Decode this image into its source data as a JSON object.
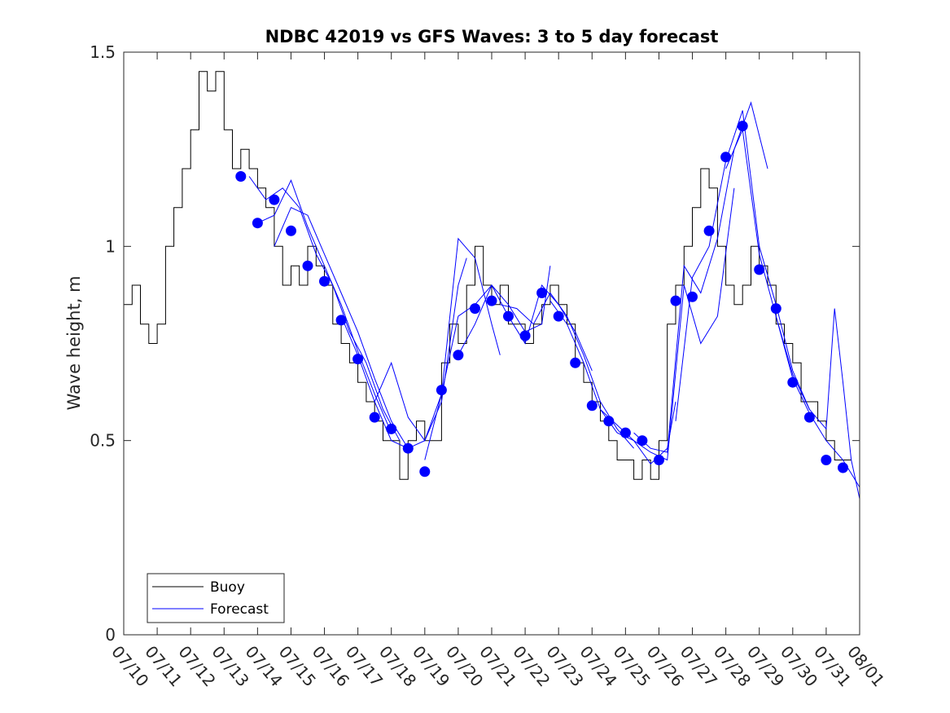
{
  "chart_data": {
    "type": "line",
    "title": "NDBC 42019 vs GFS Waves: 3 to 5 day forecast",
    "xlabel": "",
    "ylabel": "Wave height, m",
    "x_tick_labels": [
      "07/10",
      "07/11",
      "07/12",
      "07/13",
      "07/14",
      "07/15",
      "07/16",
      "07/17",
      "07/18",
      "07/19",
      "07/20",
      "07/21",
      "07/22",
      "07/23",
      "07/24",
      "07/25",
      "07/26",
      "07/27",
      "07/28",
      "07/29",
      "07/30",
      "07/31",
      "08/01"
    ],
    "xlim": [
      "07/10",
      "08/01"
    ],
    "ylim": [
      0,
      1.5
    ],
    "y_ticks": [
      0,
      0.5,
      1,
      1.5
    ],
    "y_tick_labels": [
      "0",
      "0.5",
      "1",
      "1.5"
    ],
    "grid": false,
    "legend": {
      "position": "bottom-left",
      "entries": [
        "Buoy",
        "Forecast"
      ]
    },
    "colors": {
      "buoy": "#000000",
      "forecast": "#0000ff",
      "markers": "#0000ff",
      "axes": "#262626"
    },
    "series": [
      {
        "name": "Buoy",
        "style": "stairs",
        "x": [
          "07/10 00:00",
          "07/10 06:00",
          "07/10 12:00",
          "07/10 18:00",
          "07/11 00:00",
          "07/11 06:00",
          "07/11 12:00",
          "07/11 18:00",
          "07/12 00:00",
          "07/12 06:00",
          "07/12 12:00",
          "07/12 18:00",
          "07/13 00:00",
          "07/13 06:00",
          "07/13 12:00",
          "07/13 18:00",
          "07/14 00:00",
          "07/14 06:00",
          "07/14 12:00",
          "07/14 18:00",
          "07/15 00:00",
          "07/15 06:00",
          "07/15 12:00",
          "07/15 18:00",
          "07/16 00:00",
          "07/16 06:00",
          "07/16 12:00",
          "07/16 18:00",
          "07/17 00:00",
          "07/17 06:00",
          "07/17 12:00",
          "07/17 18:00",
          "07/18 00:00",
          "07/18 06:00",
          "07/18 12:00",
          "07/18 18:00",
          "07/19 00:00",
          "07/19 06:00",
          "07/19 12:00",
          "07/19 18:00",
          "07/20 00:00",
          "07/20 06:00",
          "07/20 12:00",
          "07/20 18:00",
          "07/21 00:00",
          "07/21 06:00",
          "07/21 12:00",
          "07/21 18:00",
          "07/22 00:00",
          "07/22 06:00",
          "07/22 12:00",
          "07/22 18:00",
          "07/23 00:00",
          "07/23 06:00",
          "07/23 12:00",
          "07/23 18:00",
          "07/24 00:00",
          "07/24 06:00",
          "07/24 12:00",
          "07/24 18:00",
          "07/25 00:00",
          "07/25 06:00",
          "07/25 12:00",
          "07/25 18:00",
          "07/26 00:00",
          "07/26 06:00",
          "07/26 12:00",
          "07/26 18:00",
          "07/27 00:00",
          "07/27 06:00",
          "07/27 12:00",
          "07/27 18:00",
          "07/28 00:00",
          "07/28 06:00",
          "07/28 12:00",
          "07/28 18:00",
          "07/29 00:00",
          "07/29 06:00",
          "07/29 12:00",
          "07/29 18:00",
          "07/30 00:00",
          "07/30 06:00",
          "07/30 12:00",
          "07/30 18:00",
          "07/31 00:00",
          "07/31 06:00",
          "07/31 12:00"
        ],
        "y": [
          0.85,
          0.9,
          0.8,
          0.75,
          0.8,
          1.0,
          1.1,
          1.2,
          1.3,
          1.45,
          1.4,
          1.45,
          1.3,
          1.2,
          1.25,
          1.2,
          1.15,
          1.1,
          1.0,
          0.9,
          0.95,
          0.9,
          1.0,
          0.95,
          0.9,
          0.8,
          0.75,
          0.7,
          0.65,
          0.6,
          0.55,
          0.5,
          0.5,
          0.4,
          0.5,
          0.55,
          0.5,
          0.5,
          0.7,
          0.8,
          0.75,
          0.9,
          1.0,
          0.9,
          0.85,
          0.9,
          0.8,
          0.8,
          0.75,
          0.8,
          0.85,
          0.9,
          0.85,
          0.8,
          0.7,
          0.65,
          0.6,
          0.55,
          0.5,
          0.45,
          0.45,
          0.4,
          0.45,
          0.4,
          0.5,
          0.8,
          0.9,
          1.0,
          1.1,
          1.2,
          1.15,
          1.0,
          0.9,
          0.85,
          0.9,
          1.0,
          0.95,
          0.9,
          0.8,
          0.75,
          0.7,
          0.6,
          0.6,
          0.55,
          0.5,
          0.45,
          0.45
        ]
      },
      {
        "name": "Forecast",
        "style": "lines",
        "runs": [
          {
            "x": [
              "07/13 18:00",
              "07/14 06:00",
              "07/14 18:00",
              "07/15 06:00",
              "07/15 18:00",
              "07/16 06:00",
              "07/16 18:00",
              "07/17 06:00",
              "07/17 18:00",
              "07/18 06:00"
            ],
            "y": [
              1.18,
              1.12,
              1.15,
              1.1,
              0.98,
              0.9,
              0.78,
              0.7,
              0.58,
              0.5
            ]
          },
          {
            "x": [
              "07/14 00:00",
              "07/14 12:00",
              "07/15 00:00",
              "07/15 12:00",
              "07/16 00:00",
              "07/16 12:00",
              "07/17 00:00",
              "07/17 12:00",
              "07/18 00:00"
            ],
            "y": [
              1.06,
              1.08,
              1.17,
              1.05,
              0.95,
              0.85,
              0.73,
              0.62,
              0.52
            ]
          },
          {
            "x": [
              "07/14 12:00",
              "07/15 00:00",
              "07/15 12:00",
              "07/16 00:00",
              "07/16 12:00",
              "07/17 00:00",
              "07/17 12:00",
              "07/18 00:00",
              "07/18 12:00"
            ],
            "y": [
              1.0,
              1.1,
              1.08,
              0.98,
              0.88,
              0.78,
              0.66,
              0.55,
              0.48
            ]
          },
          {
            "x": [
              "07/16 12:00",
              "07/17 00:00",
              "07/17 12:00",
              "07/18 00:00",
              "07/18 12:00",
              "07/19 00:00",
              "07/19 12:00",
              "07/20 00:00",
              "07/20 06:00"
            ],
            "y": [
              0.82,
              0.72,
              0.6,
              0.7,
              0.56,
              0.5,
              0.6,
              0.9,
              0.97
            ]
          },
          {
            "x": [
              "07/17 12:00",
              "07/18 00:00",
              "07/18 12:00",
              "07/19 00:00",
              "07/19 12:00",
              "07/20 00:00",
              "07/20 12:00",
              "07/21 00:00",
              "07/21 06:00"
            ],
            "y": [
              0.6,
              0.5,
              0.48,
              0.5,
              0.62,
              1.02,
              0.97,
              0.8,
              0.72
            ]
          },
          {
            "x": [
              "07/19 00:00",
              "07/19 12:00",
              "07/20 00:00",
              "07/20 12:00",
              "07/21 00:00",
              "07/21 12:00",
              "07/22 00:00",
              "07/22 12:00",
              "07/22 18:00"
            ],
            "y": [
              0.45,
              0.62,
              0.82,
              0.85,
              0.9,
              0.85,
              0.78,
              0.8,
              0.95
            ]
          },
          {
            "x": [
              "07/20 00:00",
              "07/20 12:00",
              "07/21 00:00",
              "07/21 12:00",
              "07/22 00:00",
              "07/22 12:00",
              "07/23 00:00",
              "07/23 12:00",
              "07/24 00:00"
            ],
            "y": [
              0.72,
              0.8,
              0.9,
              0.82,
              0.75,
              0.9,
              0.85,
              0.78,
              0.68
            ]
          },
          {
            "x": [
              "07/21 06:00",
              "07/21 18:00",
              "07/22 06:00",
              "07/22 18:00",
              "07/23 06:00",
              "07/23 18:00",
              "07/24 06:00",
              "07/24 18:00",
              "07/25 06:00"
            ],
            "y": [
              0.85,
              0.84,
              0.8,
              0.88,
              0.82,
              0.72,
              0.6,
              0.53,
              0.48
            ]
          },
          {
            "x": [
              "07/22 18:00",
              "07/23 06:00",
              "07/23 18:00",
              "07/24 06:00",
              "07/24 18:00",
              "07/25 06:00",
              "07/25 18:00",
              "07/26 06:00",
              "07/26 12:00"
            ],
            "y": [
              0.86,
              0.8,
              0.7,
              0.58,
              0.54,
              0.5,
              0.44,
              0.48,
              0.6
            ]
          },
          {
            "x": [
              "07/24 06:00",
              "07/24 18:00",
              "07/25 06:00",
              "07/25 18:00",
              "07/26 06:00",
              "07/26 18:00",
              "07/27 06:00",
              "07/27 18:00",
              "07/28 06:00"
            ],
            "y": [
              0.58,
              0.52,
              0.5,
              0.47,
              0.45,
              0.9,
              0.75,
              0.82,
              1.15
            ]
          },
          {
            "x": [
              "07/25 06:00",
              "07/25 18:00",
              "07/26 06:00",
              "07/26 18:00",
              "07/27 06:00",
              "07/27 18:00",
              "07/28 06:00",
              "07/28 18:00",
              "07/29 06:00"
            ],
            "y": [
              0.52,
              0.48,
              0.47,
              0.95,
              0.88,
              1.02,
              1.25,
              1.37,
              1.2
            ]
          },
          {
            "x": [
              "07/26 12:00",
              "07/27 00:00",
              "07/27 12:00",
              "07/28 00:00",
              "07/28 12:00",
              "07/29 00:00",
              "07/29 12:00",
              "07/30 00:00",
              "07/30 12:00"
            ],
            "y": [
              0.55,
              0.92,
              1.0,
              1.22,
              1.35,
              1.0,
              0.85,
              0.68,
              0.58
            ]
          },
          {
            "x": [
              "07/28 00:00",
              "07/28 12:00",
              "07/29 00:00",
              "07/29 12:00",
              "07/30 00:00",
              "07/30 12:00",
              "07/31 00:00",
              "07/31 12:00",
              "08/01 00:00"
            ],
            "y": [
              1.2,
              1.3,
              0.98,
              0.82,
              0.66,
              0.57,
              0.5,
              0.45,
              0.38
            ]
          },
          {
            "x": [
              "07/29 12:00",
              "07/30 00:00",
              "07/30 12:00",
              "07/31 00:00",
              "07/31 06:00",
              "07/31 12:00",
              "07/31 18:00",
              "08/01 00:00"
            ],
            "y": [
              0.82,
              0.67,
              0.58,
              0.53,
              0.84,
              0.65,
              0.45,
              0.35
            ]
          }
        ]
      },
      {
        "name": "Forecast markers",
        "style": "markers",
        "x": [
          "07/13 12:00",
          "07/14 00:00",
          "07/14 12:00",
          "07/15 00:00",
          "07/15 12:00",
          "07/16 00:00",
          "07/16 12:00",
          "07/17 00:00",
          "07/17 12:00",
          "07/18 00:00",
          "07/18 12:00",
          "07/19 00:00",
          "07/19 12:00",
          "07/20 00:00",
          "07/20 12:00",
          "07/21 00:00",
          "07/21 12:00",
          "07/22 00:00",
          "07/22 12:00",
          "07/23 00:00",
          "07/23 12:00",
          "07/24 00:00",
          "07/24 12:00",
          "07/25 00:00",
          "07/25 12:00",
          "07/26 00:00",
          "07/26 12:00",
          "07/27 00:00",
          "07/27 12:00",
          "07/28 00:00",
          "07/28 12:00",
          "07/29 00:00",
          "07/29 12:00",
          "07/30 00:00",
          "07/30 12:00",
          "07/31 00:00",
          "07/31 12:00"
        ],
        "y": [
          1.18,
          1.06,
          1.12,
          1.04,
          0.95,
          0.91,
          0.81,
          0.71,
          0.56,
          0.53,
          0.48,
          0.42,
          0.63,
          0.72,
          0.84,
          0.86,
          0.82,
          0.77,
          0.88,
          0.82,
          0.7,
          0.59,
          0.55,
          0.52,
          0.5,
          0.45,
          0.86,
          0.87,
          1.04,
          1.23,
          1.31,
          0.94,
          0.84,
          0.65,
          0.56,
          0.45,
          0.43
        ]
      }
    ]
  }
}
